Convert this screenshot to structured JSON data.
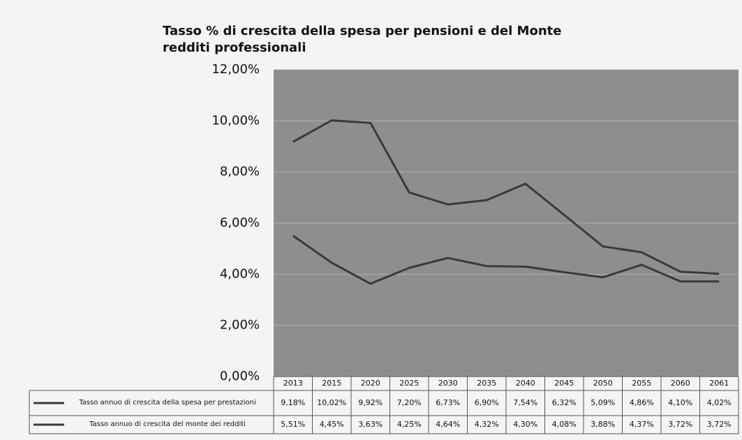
{
  "chart_data": {
    "type": "line",
    "title": "Tasso % di crescita della spesa per pensioni e del Monte redditi professionali",
    "categories": [
      "2013",
      "2015",
      "2020",
      "2025",
      "2030",
      "2035",
      "2040",
      "2045",
      "2050",
      "2055",
      "2060",
      "2061"
    ],
    "series": [
      {
        "name": "Tasso annuo di crescita della spesa per prestazioni",
        "color": "#3a3a3a",
        "values": [
          9.18,
          10.02,
          9.92,
          7.2,
          6.73,
          6.9,
          7.54,
          6.32,
          5.09,
          4.86,
          4.1,
          4.02
        ],
        "value_labels": [
          "9,18%",
          "10,02%",
          "9,92%",
          "7,20%",
          "6,73%",
          "6,90%",
          "7,54%",
          "6,32%",
          "5,09%",
          "4,86%",
          "4,10%",
          "4,02%"
        ]
      },
      {
        "name": "Tasso annuo di crescita del monte dei redditi",
        "color": "#3a3a3a",
        "values": [
          5.51,
          4.45,
          3.63,
          4.25,
          4.64,
          4.32,
          4.3,
          4.08,
          3.88,
          4.37,
          3.72,
          3.72
        ],
        "value_labels": [
          "5,51%",
          "4,45%",
          "3,63%",
          "4,25%",
          "4,64%",
          "4,32%",
          "4,30%",
          "4,08%",
          "3,88%",
          "4,37%",
          "3,72%",
          "3,72%"
        ]
      }
    ],
    "ylim": [
      0,
      12
    ],
    "yticks": [
      {
        "value": 0,
        "label": "0,00%"
      },
      {
        "value": 2,
        "label": "2,00%"
      },
      {
        "value": 4,
        "label": "4,00%"
      },
      {
        "value": 6,
        "label": "6,00%"
      },
      {
        "value": 8,
        "label": "8,00%"
      },
      {
        "value": 10,
        "label": "10,00%"
      },
      {
        "value": 12,
        "label": "12,00%"
      }
    ],
    "grid": true
  }
}
